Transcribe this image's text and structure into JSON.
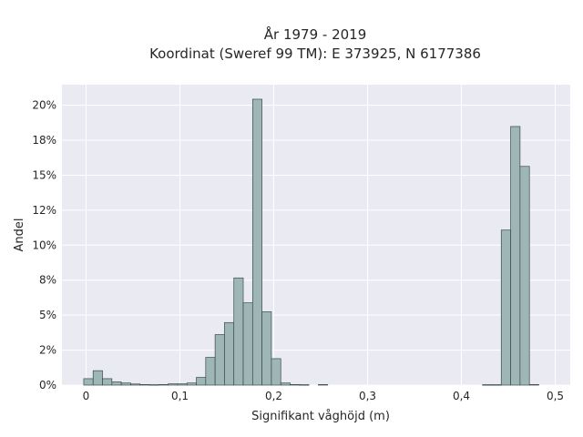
{
  "chart_data": {
    "type": "bar",
    "title": "År 1979 - 2019",
    "subtitle": "Koordinat (Sweref 99 TM): E 373925, N 6177386",
    "xlabel": "Signifikant våghöjd (m)",
    "ylabel": "Andel",
    "xlim": [
      -0.012,
      0.505
    ],
    "ylim": [
      0,
      0.2147
    ],
    "x_ticks": [
      0,
      0.1,
      0.2,
      0.3,
      0.4,
      0.5
    ],
    "x_tick_labels": [
      "0",
      "0,1",
      "0,2",
      "0,3",
      "0,4",
      "0,5"
    ],
    "y_ticks": [
      0,
      0.025,
      0.05,
      0.075,
      0.1,
      0.125,
      0.15,
      0.175,
      0.2
    ],
    "y_tick_labels": [
      "0%",
      "2%",
      "5%",
      "8%",
      "10%",
      "12%",
      "15%",
      "18%",
      "20%"
    ],
    "grid": true,
    "bar_color": "#9fb6b6",
    "bar_edge_color": "#3a4a4a",
    "background_color": "#eaeaf2",
    "bins": [
      {
        "x0": -0.0025,
        "x1": 0.0075,
        "value": 0.0046
      },
      {
        "x0": 0.0075,
        "x1": 0.0175,
        "value": 0.0103
      },
      {
        "x0": 0.0175,
        "x1": 0.0275,
        "value": 0.0046
      },
      {
        "x0": 0.0275,
        "x1": 0.0375,
        "value": 0.0023
      },
      {
        "x0": 0.0375,
        "x1": 0.0475,
        "value": 0.0015
      },
      {
        "x0": 0.0475,
        "x1": 0.0575,
        "value": 0.0008
      },
      {
        "x0": 0.0575,
        "x1": 0.0675,
        "value": 0.0004
      },
      {
        "x0": 0.0675,
        "x1": 0.0775,
        "value": 0.0003
      },
      {
        "x0": 0.0775,
        "x1": 0.0875,
        "value": 0.0004
      },
      {
        "x0": 0.0875,
        "x1": 0.0975,
        "value": 0.0009
      },
      {
        "x0": 0.0975,
        "x1": 0.1075,
        "value": 0.0009
      },
      {
        "x0": 0.1075,
        "x1": 0.1175,
        "value": 0.0015
      },
      {
        "x0": 0.1175,
        "x1": 0.1275,
        "value": 0.0055
      },
      {
        "x0": 0.1275,
        "x1": 0.1375,
        "value": 0.0198
      },
      {
        "x0": 0.1375,
        "x1": 0.1475,
        "value": 0.0361
      },
      {
        "x0": 0.1475,
        "x1": 0.1575,
        "value": 0.0447
      },
      {
        "x0": 0.1575,
        "x1": 0.1675,
        "value": 0.0766
      },
      {
        "x0": 0.1675,
        "x1": 0.1775,
        "value": 0.0588
      },
      {
        "x0": 0.1775,
        "x1": 0.1875,
        "value": 0.2043
      },
      {
        "x0": 0.1875,
        "x1": 0.1975,
        "value": 0.0524
      },
      {
        "x0": 0.1975,
        "x1": 0.2075,
        "value": 0.0189
      },
      {
        "x0": 0.2075,
        "x1": 0.2175,
        "value": 0.0015
      },
      {
        "x0": 0.2175,
        "x1": 0.2275,
        "value": 0.0004
      },
      {
        "x0": 0.2275,
        "x1": 0.2375,
        "value": 0.0003
      },
      {
        "x0": 0.2475,
        "x1": 0.2575,
        "value": 0.0004
      },
      {
        "x0": 0.4225,
        "x1": 0.4325,
        "value": 0.0003
      },
      {
        "x0": 0.4325,
        "x1": 0.4425,
        "value": 0.0003
      },
      {
        "x0": 0.4425,
        "x1": 0.4525,
        "value": 0.1108
      },
      {
        "x0": 0.4525,
        "x1": 0.4625,
        "value": 0.1848
      },
      {
        "x0": 0.4625,
        "x1": 0.4725,
        "value": 0.1563
      },
      {
        "x0": 0.4725,
        "x1": 0.4825,
        "value": 0.0004
      }
    ]
  }
}
